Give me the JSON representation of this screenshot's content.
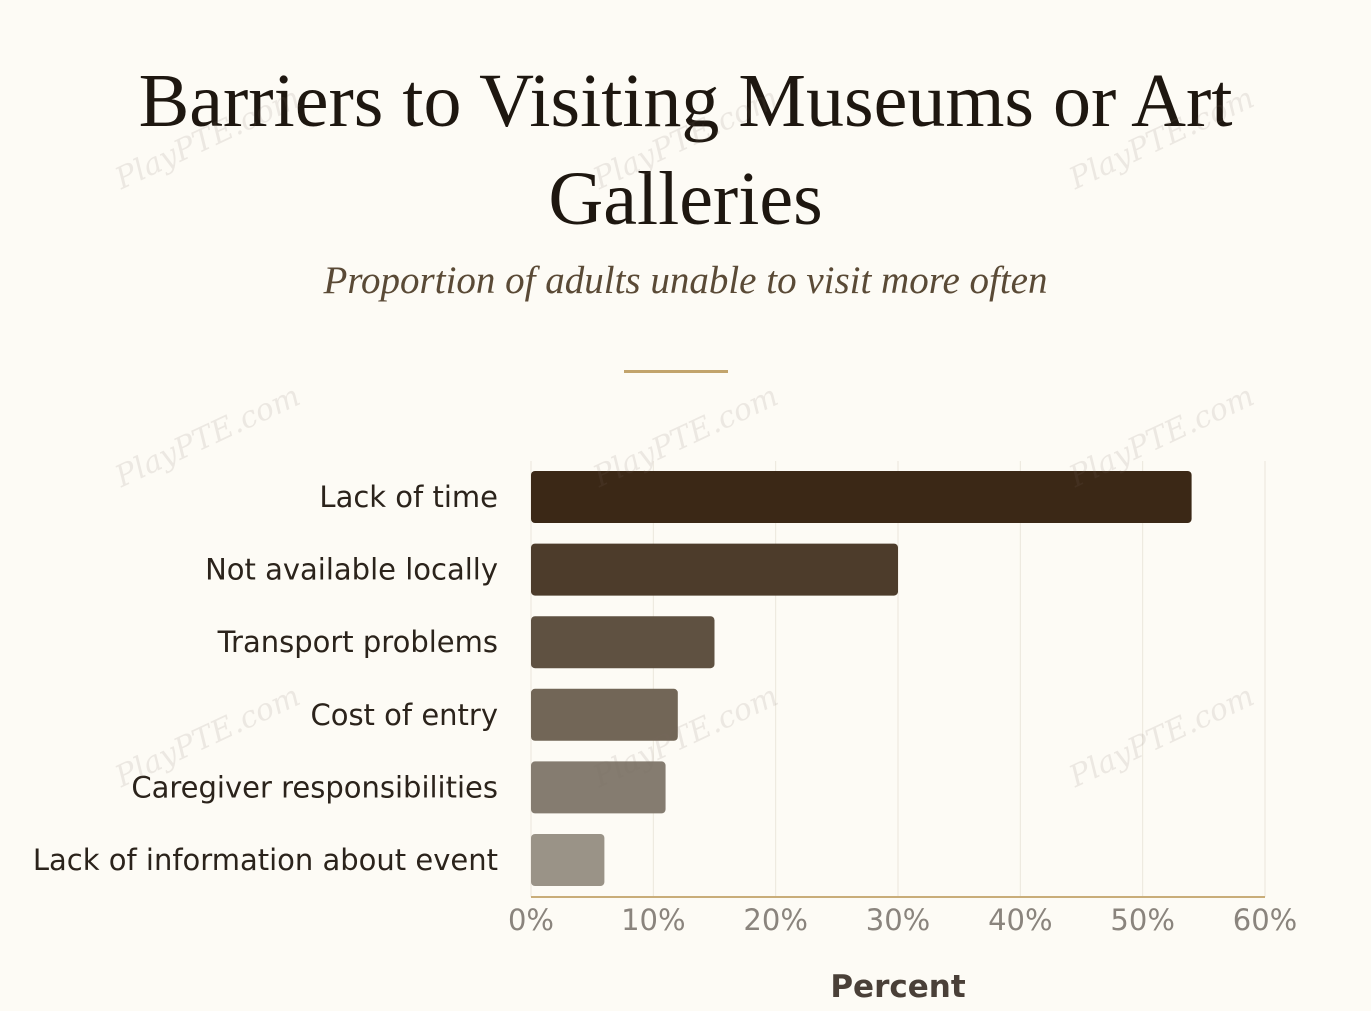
{
  "watermark_text": "PlayPTE.com",
  "chart_data": {
    "type": "bar",
    "orientation": "horizontal",
    "title": "Barriers to Visiting Museums or Art Galleries",
    "subtitle": "Proportion of adults unable to visit more often",
    "xlabel": "Percent",
    "ylabel": "",
    "xlim": [
      0,
      60
    ],
    "x_ticks": [
      0,
      10,
      20,
      30,
      40,
      50,
      60
    ],
    "tick_suffix": "%",
    "grid": true,
    "categories": [
      "Lack of time",
      "Not available locally",
      "Transport problems",
      "Cost of entry",
      "Caregiver responsibilities",
      "Lack of information about event"
    ],
    "values": [
      54,
      30,
      15,
      12,
      11,
      6
    ],
    "colors": [
      "#3b2816",
      "#4d3c2b",
      "#5f5141",
      "#726657",
      "#857c70",
      "#9a9387"
    ],
    "axis_color": "#c9ad79",
    "grid_color": "#ebe6dc",
    "accent_color": "#c2a46c"
  }
}
